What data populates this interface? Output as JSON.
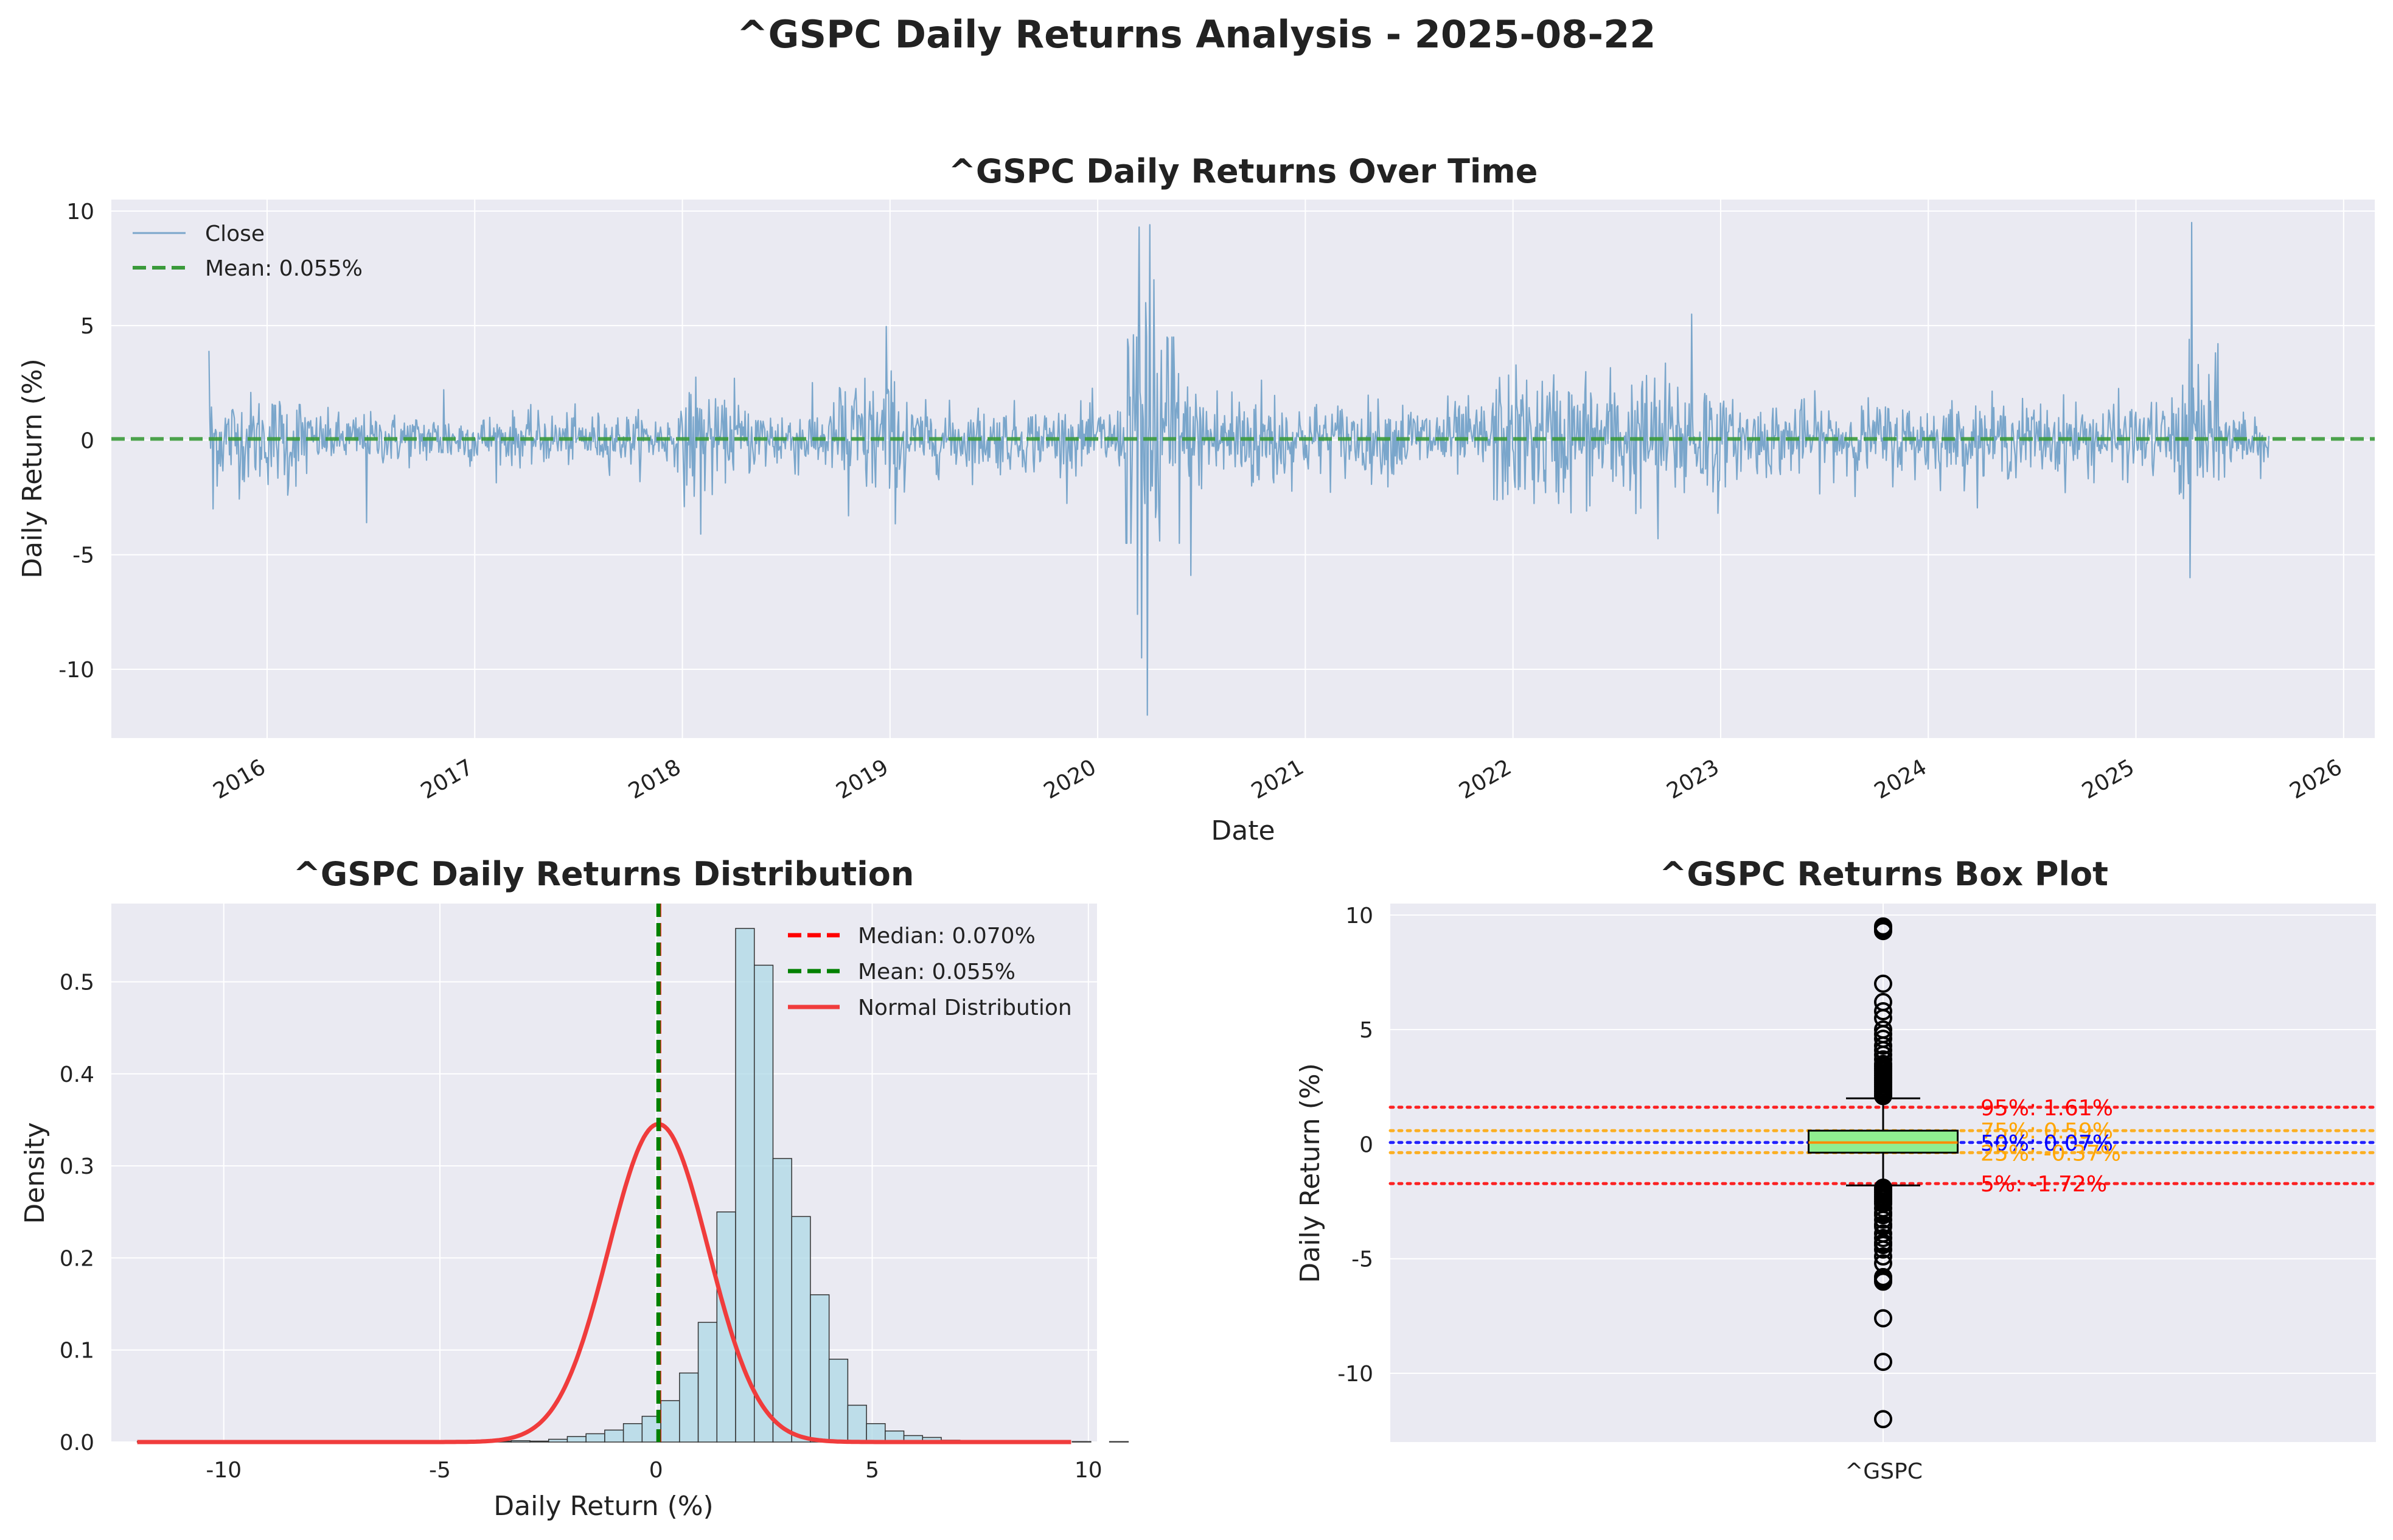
{
  "figure": {
    "title": "^GSPC Daily Returns Analysis - 2025-08-22"
  },
  "colors": {
    "panel_bg": "#eaeaf2",
    "grid": "#ffffff",
    "returns_line": "#7aa6cb",
    "mean_line": "#3a9a3a",
    "hist_fill": "#add8e6",
    "hist_edge": "#333333",
    "median_line": "#ff0000",
    "mean_hist_line": "#008000",
    "normal_curve": "#f03c3c",
    "box_fill": "#90ee90",
    "box_median": "#ff8c00",
    "pct_red": "#ff0000",
    "pct_orange": "#ffa500",
    "pct_blue": "#0000ff"
  },
  "chart_data": [
    {
      "type": "line",
      "title": "^GSPC Daily Returns Over Time",
      "xlabel": "Date",
      "ylabel": "Daily Return (%)",
      "xlim": [
        2015.25,
        2026.15
      ],
      "ylim": [
        -13,
        10.5
      ],
      "xticks": [
        2016,
        2017,
        2018,
        2019,
        2020,
        2021,
        2022,
        2023,
        2024,
        2025,
        2026
      ],
      "xtick_labels": [
        "2016",
        "2017",
        "2018",
        "2019",
        "2020",
        "2021",
        "2022",
        "2023",
        "2024",
        "2025",
        "2026"
      ],
      "yticks": [
        10,
        5,
        0,
        -5,
        -10
      ],
      "ytick_labels": [
        "10",
        "5",
        "0",
        "-5",
        "-10"
      ],
      "grid": true,
      "legend": "top-left",
      "series": [
        {
          "name": "Close",
          "x_start": 2015.72,
          "x_end": 2025.64,
          "mean": 0.055
        },
        {
          "name": "Mean: 0.055%",
          "value": 0.055,
          "style": "dashed"
        }
      ],
      "events": [
        {
          "x": 2015.72,
          "value": 3.9
        },
        {
          "x": 2015.74,
          "value": -3.0
        },
        {
          "x": 2016.1,
          "value": -2.4
        },
        {
          "x": 2016.48,
          "value": -3.6
        },
        {
          "x": 2016.85,
          "value": 2.2
        },
        {
          "x": 2018.09,
          "value": -4.1
        },
        {
          "x": 2018.25,
          "value": 2.7
        },
        {
          "x": 2018.8,
          "value": -3.3
        },
        {
          "x": 2018.98,
          "value": 4.96
        },
        {
          "x": 2020.17,
          "value": 4.6
        },
        {
          "x": 2020.19,
          "value": -7.6
        },
        {
          "x": 2020.2,
          "value": 9.3
        },
        {
          "x": 2020.21,
          "value": -9.5
        },
        {
          "x": 2020.23,
          "value": 6.0
        },
        {
          "x": 2020.24,
          "value": -12.0
        },
        {
          "x": 2020.25,
          "value": 9.4
        },
        {
          "x": 2020.27,
          "value": 7.0
        },
        {
          "x": 2020.3,
          "value": -4.4
        },
        {
          "x": 2020.45,
          "value": -5.9
        },
        {
          "x": 2022.7,
          "value": -4.3
        },
        {
          "x": 2022.86,
          "value": 5.5
        },
        {
          "x": 2025.26,
          "value": -6.0
        },
        {
          "x": 2025.27,
          "value": 9.5
        },
        {
          "x": 2025.3,
          "value": 3.3
        }
      ]
    },
    {
      "type": "histogram",
      "title": "^GSPC Daily Returns Distribution",
      "xlabel": "Daily Return (%)",
      "ylabel": "Density",
      "xlim": [
        -12.6,
        10.2
      ],
      "ylim": [
        0,
        0.585
      ],
      "xticks": [
        -10,
        -5,
        0,
        5,
        10
      ],
      "xtick_labels": [
        "-10",
        "-5",
        "0",
        "5",
        "10"
      ],
      "yticks": [
        0.0,
        0.1,
        0.2,
        0.3,
        0.4,
        0.5
      ],
      "ytick_labels": [
        "0.0",
        "0.1",
        "0.2",
        "0.3",
        "0.4",
        "0.5"
      ],
      "grid": true,
      "legend": "top-right",
      "bin_start": -12.0,
      "bin_width": 0.4325,
      "densities": [
        0.0005,
        0,
        0,
        0,
        0,
        0,
        0.0005,
        0,
        0.0005,
        0.0005,
        0,
        0,
        0,
        0,
        0.0005,
        0,
        0,
        0.0005,
        0,
        0.001,
        0.0015,
        0.001,
        0.003,
        0.006,
        0.009,
        0.013,
        0.02,
        0.028,
        0.045,
        0.075,
        0.13,
        0.25,
        0.558,
        0.518,
        0.308,
        0.245,
        0.16,
        0.09,
        0.04,
        0.02,
        0.012,
        0.007,
        0.005,
        0.002,
        0.001,
        0.001,
        0.0005,
        0.0005,
        0,
        0,
        0.0005,
        0,
        0.0005
      ],
      "median": 0.07,
      "mean": 0.055,
      "normal_mu": 0.055,
      "normal_sigma": 1.155,
      "legend_entries": [
        "Median: 0.070%",
        "Mean: 0.055%",
        "Normal Distribution"
      ]
    },
    {
      "type": "box",
      "title": "^GSPC Returns Box Plot",
      "ylabel": "Daily Return (%)",
      "category": "^GSPC",
      "ylim": [
        -13,
        10.5
      ],
      "yticks": [
        10,
        5,
        0,
        -5,
        -10
      ],
      "ytick_labels": [
        "10",
        "5",
        "0",
        "-5",
        "-10"
      ],
      "grid": true,
      "q1": -0.37,
      "median": 0.07,
      "q3": 0.59,
      "whisker_low": -1.8,
      "whisker_high": 2.0,
      "outliers": [
        9.5,
        9.4,
        9.3,
        7.0,
        6.2,
        5.8,
        5.5,
        5.0,
        4.8,
        4.6,
        4.3,
        4.1,
        3.9,
        3.7,
        3.5,
        3.4,
        3.3,
        3.2,
        3.1,
        3.0,
        2.9,
        2.8,
        2.7,
        2.6,
        2.5,
        2.4,
        2.3,
        2.2,
        2.1,
        -1.9,
        -2.0,
        -2.1,
        -2.2,
        -2.3,
        -2.4,
        -2.5,
        -2.6,
        -2.8,
        -3.0,
        -3.1,
        -3.3,
        -3.5,
        -3.6,
        -3.9,
        -4.1,
        -4.3,
        -4.4,
        -4.6,
        -4.9,
        -5.2,
        -5.8,
        -5.9,
        -6.0,
        -7.6,
        -9.5,
        -12.0
      ],
      "percentiles": [
        {
          "label": "95%: 1.61%",
          "value": 1.61,
          "color": "#ff0000"
        },
        {
          "label": "75%: 0.59%",
          "value": 0.59,
          "color": "#ffa500"
        },
        {
          "label": "50%: 0.07%",
          "value": 0.07,
          "color": "#0000ff"
        },
        {
          "label": "25%: -0.37%",
          "value": -0.37,
          "color": "#ffa500"
        },
        {
          "label": "5%: -1.72%",
          "value": -1.72,
          "color": "#ff0000"
        }
      ]
    }
  ]
}
